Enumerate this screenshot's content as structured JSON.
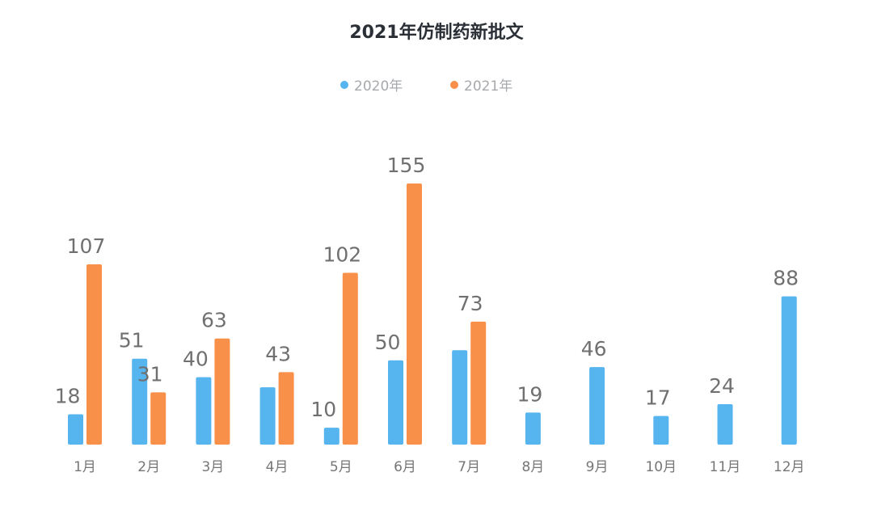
{
  "chart_data": {
    "type": "bar",
    "title": "2021年仿制药新批文",
    "categories": [
      "1月",
      "2月",
      "3月",
      "4月",
      "5月",
      "6月",
      "7月",
      "8月",
      "9月",
      "10月",
      "11月",
      "12月"
    ],
    "series": [
      {
        "name": "2020年",
        "color": "#56b4ef",
        "values": [
          18,
          51,
          40,
          34,
          10,
          50,
          56,
          19,
          46,
          17,
          24,
          88
        ],
        "labels": [
          "18",
          "51",
          "40",
          "",
          "10",
          "50",
          "",
          "19",
          "46",
          "17",
          "24",
          "88"
        ]
      },
      {
        "name": "2021年",
        "color": "#f8904a",
        "values": [
          107,
          31,
          63,
          43,
          102,
          155,
          73,
          null,
          null,
          null,
          null,
          null
        ],
        "labels": [
          "107",
          "31",
          "63",
          "43",
          "102",
          "155",
          "73",
          "",
          "",
          "",
          "",
          ""
        ]
      }
    ],
    "ylim": [
      0,
      160
    ],
    "xlabel": "",
    "ylabel": "",
    "grid": false,
    "legend_position": "top-center"
  }
}
